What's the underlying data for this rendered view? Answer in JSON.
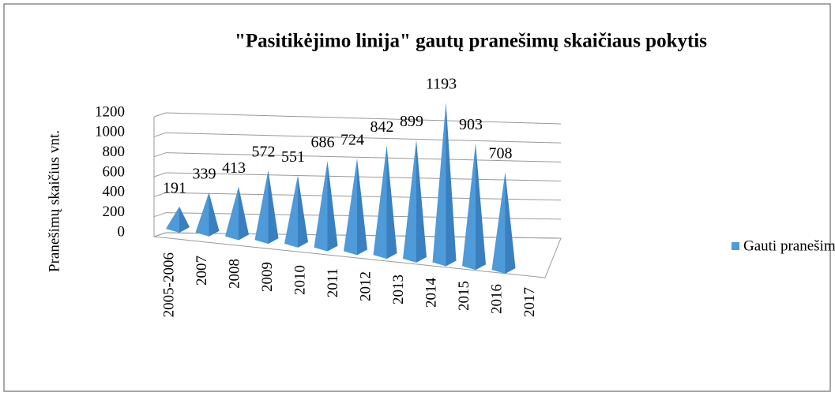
{
  "chart_data": {
    "type": "bar",
    "title": "\"Pasitikėjimo linija\" gautų pranešimų skaičiaus pokytis",
    "y_label": "Pranešimų skaičius vnt.",
    "categories": [
      "2005-2006",
      "2007",
      "2008",
      "2009",
      "2010",
      "2011",
      "2012",
      "2013",
      "2014",
      "2015",
      "2016",
      "2017"
    ],
    "series": [
      {
        "name": "Gauti pranešimai",
        "color": "#4f9ad8",
        "values": [
          191,
          339,
          413,
          572,
          551,
          686,
          724,
          842,
          899,
          1193,
          903,
          708
        ]
      }
    ],
    "ylim": [
      0,
      1200
    ],
    "yticks": [
      0,
      200,
      400,
      600,
      800,
      1000,
      1200
    ],
    "grid": true,
    "legend": "right"
  }
}
